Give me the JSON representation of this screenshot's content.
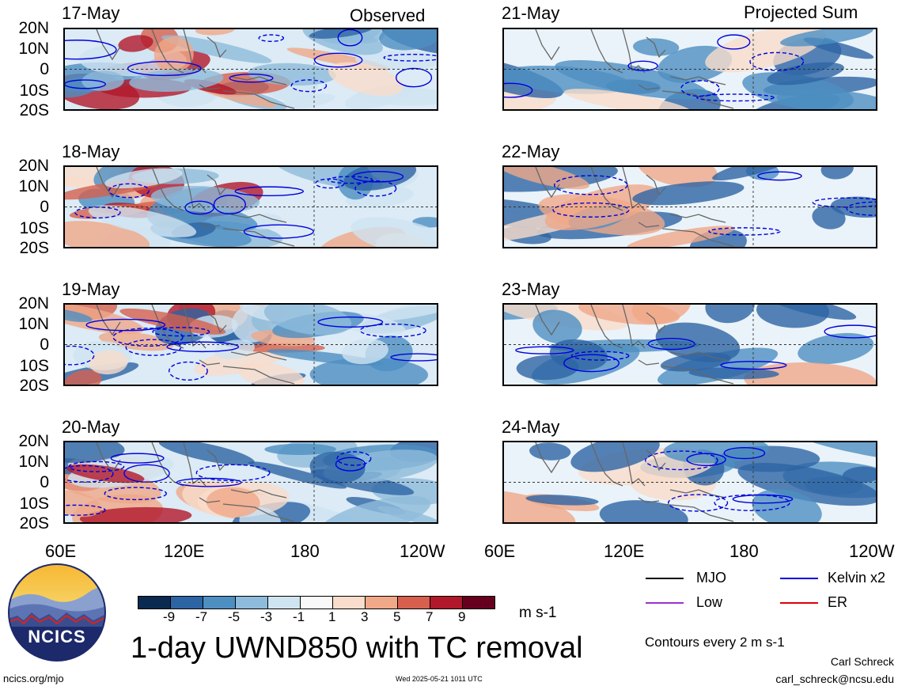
{
  "left_header": "Observed",
  "right_header": "Projected Sum",
  "panels_left": [
    {
      "date": "17-May"
    },
    {
      "date": "18-May"
    },
    {
      "date": "19-May"
    },
    {
      "date": "20-May"
    }
  ],
  "panels_right": [
    {
      "date": "21-May"
    },
    {
      "date": "22-May"
    },
    {
      "date": "23-May"
    },
    {
      "date": "24-May"
    }
  ],
  "lat_labels": [
    "20N",
    "10N",
    "0",
    "10S",
    "20S"
  ],
  "lon_labels_left": [
    "60E",
    "120E",
    "180",
    "120W"
  ],
  "lon_labels_right": [
    "60E",
    "120E",
    "180",
    "120W"
  ],
  "colorbar": {
    "labels": [
      "-9",
      "-7",
      "-5",
      "-3",
      "-1",
      "1",
      "3",
      "5",
      "7",
      "9"
    ],
    "colors": [
      "#0a2a50",
      "#2d64a4",
      "#4e8fc2",
      "#8ebbdb",
      "#cfe4f1",
      "#f8f8f8",
      "#f9dccb",
      "#f0a888",
      "#d6604d",
      "#b2182b",
      "#67001f"
    ],
    "unit": "m s-1"
  },
  "main_title": "1-day UWND850 with TC removal",
  "logo_text": "NCICS",
  "legend": [
    {
      "label": "MJO",
      "color": "#000000"
    },
    {
      "label": "Kelvin x2",
      "color": "#0000e0"
    },
    {
      "label": "Low",
      "color": "#9933cc"
    },
    {
      "label": "ER",
      "color": "#e00000"
    }
  ],
  "contour_note": "Contours every 2 m s-1",
  "footer_left": "ncics.org/mjo",
  "footer_center": "Wed 2025-05-21 1011 UTC",
  "author": "Carl Schreck",
  "email": "carl_schreck@ncsu.edu",
  "chart_data": {
    "type": "heatmap",
    "title": "1-day UWND850 with TC removal",
    "xlabel": "",
    "ylabel": "",
    "x_ticks": [
      "60E",
      "120E",
      "180",
      "120W"
    ],
    "y_ticks": [
      "20N",
      "10N",
      "0",
      "10S",
      "20S"
    ],
    "xlim": [
      "60E",
      "120W"
    ],
    "ylim": [
      "20S",
      "20N"
    ],
    "levels": [
      -9,
      -7,
      -5,
      -3,
      -1,
      1,
      3,
      5,
      7,
      9
    ],
    "unit": "m s-1",
    "panels": [
      {
        "date": "17-May",
        "group": "Observed"
      },
      {
        "date": "18-May",
        "group": "Observed"
      },
      {
        "date": "19-May",
        "group": "Observed"
      },
      {
        "date": "20-May",
        "group": "Observed"
      },
      {
        "date": "21-May",
        "group": "Projected Sum"
      },
      {
        "date": "22-May",
        "group": "Projected Sum"
      },
      {
        "date": "23-May",
        "group": "Projected Sum"
      },
      {
        "date": "24-May",
        "group": "Projected Sum"
      }
    ],
    "contour_interval": 2
  }
}
